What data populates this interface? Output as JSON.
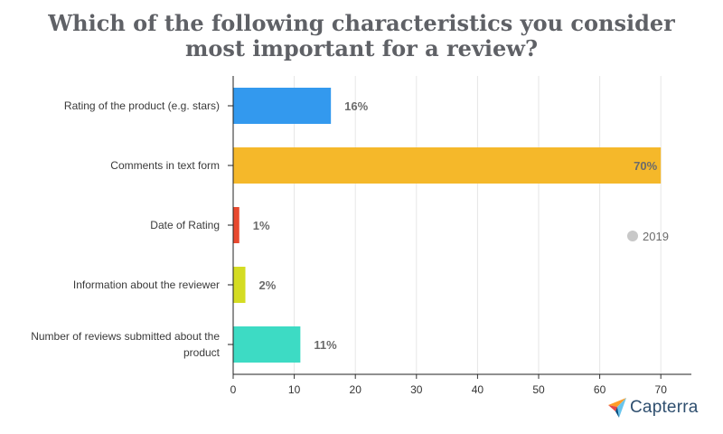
{
  "chart_data": {
    "type": "bar",
    "orientation": "horizontal",
    "title_lines": [
      "Which of the following characteristics you consider",
      "most important for a review?"
    ],
    "categories": [
      [
        "Rating of the product (e.g. stars)"
      ],
      [
        "Comments in text form"
      ],
      [
        "Date of Rating"
      ],
      [
        "Information about the reviewer"
      ],
      [
        "Number of reviews submitted about the",
        "product"
      ]
    ],
    "values": [
      16,
      70,
      1,
      2,
      11
    ],
    "value_labels": [
      "16%",
      "70%",
      "1%",
      "2%",
      "11%"
    ],
    "colors": [
      "#3399ee",
      "#f5b82a",
      "#e8492f",
      "#d4dc23",
      "#3ddbc4"
    ],
    "xlim": [
      0,
      75
    ],
    "xticks": [
      0,
      10,
      20,
      30,
      40,
      50,
      60,
      70
    ],
    "xtick_labels": [
      "0",
      "10",
      "20",
      "30",
      "40",
      "50",
      "60",
      "70"
    ],
    "xlabel": "",
    "ylabel": "",
    "grid": true,
    "legend": {
      "label": "2019",
      "color": "#c8c8c8",
      "placement": "right"
    }
  },
  "brand": {
    "name": "Capterra",
    "colors": [
      "#ff9d28",
      "#68c5ed",
      "#044d80",
      "#e54747"
    ]
  }
}
